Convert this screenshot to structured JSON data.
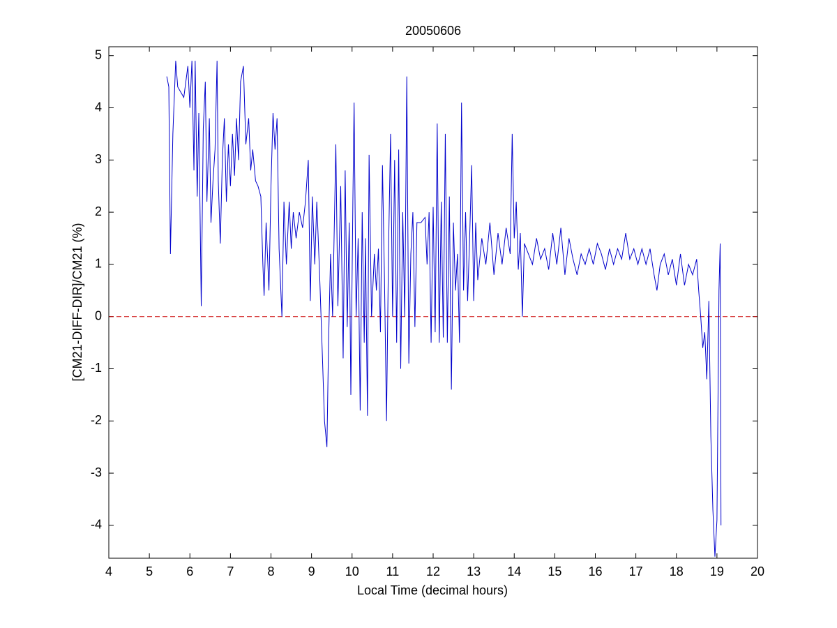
{
  "chart_data": {
    "type": "line",
    "title": "20050606",
    "x_label": "Local Time (decimal hours)",
    "y_label": "[CM21-DIFF-DIR]/CM21 (%)",
    "xlim": [
      4,
      20
    ],
    "xticks": [
      4,
      5,
      6,
      7,
      8,
      9,
      10,
      11,
      12,
      13,
      14,
      15,
      16,
      17,
      18,
      19,
      20
    ],
    "ylim": [
      -4.63,
      5.17
    ],
    "yticks": [
      -4,
      -3,
      -2,
      -1,
      0,
      1,
      2,
      3,
      4,
      5
    ],
    "reference_line": {
      "value": 0,
      "color": "#cc0000",
      "dashed": true
    },
    "box": true,
    "series": [
      {
        "color": "#0000cc",
        "x": [
          5.43,
          5.48,
          5.52,
          5.58,
          5.65,
          5.7,
          5.85,
          5.95,
          6.0,
          6.05,
          6.1,
          6.13,
          6.18,
          6.22,
          6.28,
          6.33,
          6.38,
          6.42,
          6.48,
          6.52,
          6.57,
          6.62,
          6.67,
          6.7,
          6.75,
          6.8,
          6.85,
          6.9,
          6.95,
          7.0,
          7.05,
          7.1,
          7.15,
          7.2,
          7.25,
          7.32,
          7.38,
          7.45,
          7.5,
          7.55,
          7.62,
          7.68,
          7.75,
          7.8,
          7.83,
          7.88,
          7.95,
          8.0,
          8.05,
          8.1,
          8.15,
          8.2,
          8.27,
          8.32,
          8.38,
          8.45,
          8.5,
          8.55,
          8.62,
          8.7,
          8.78,
          8.85,
          8.92,
          8.97,
          9.02,
          9.08,
          9.13,
          9.2,
          9.27,
          9.32,
          9.38,
          9.42,
          9.47,
          9.52,
          9.6,
          9.65,
          9.72,
          9.78,
          9.83,
          9.88,
          9.93,
          9.97,
          10.02,
          10.05,
          10.1,
          10.15,
          10.2,
          10.25,
          10.3,
          10.33,
          10.38,
          10.42,
          10.48,
          10.55,
          10.6,
          10.65,
          10.7,
          10.75,
          10.8,
          10.85,
          10.9,
          10.95,
          11.0,
          11.05,
          11.1,
          11.15,
          11.2,
          11.25,
          11.3,
          11.35,
          11.4,
          11.45,
          11.5,
          11.55,
          11.6,
          11.7,
          11.8,
          11.85,
          11.9,
          11.95,
          12.0,
          12.05,
          12.1,
          12.15,
          12.2,
          12.25,
          12.3,
          12.35,
          12.4,
          12.45,
          12.5,
          12.55,
          12.6,
          12.65,
          12.7,
          12.75,
          12.8,
          12.85,
          12.9,
          12.95,
          13.0,
          13.05,
          13.1,
          13.2,
          13.3,
          13.4,
          13.5,
          13.6,
          13.7,
          13.8,
          13.9,
          13.95,
          14.0,
          14.05,
          14.1,
          14.15,
          14.2,
          14.25,
          14.35,
          14.45,
          14.55,
          14.65,
          14.75,
          14.85,
          14.95,
          15.05,
          15.15,
          15.25,
          15.35,
          15.45,
          15.55,
          15.65,
          15.75,
          15.85,
          15.95,
          16.05,
          16.15,
          16.25,
          16.35,
          16.45,
          16.55,
          16.65,
          16.75,
          16.85,
          16.95,
          17.05,
          17.15,
          17.25,
          17.35,
          17.45,
          17.52,
          17.6,
          17.7,
          17.8,
          17.9,
          18.0,
          18.1,
          18.2,
          18.3,
          18.4,
          18.5,
          18.55,
          18.6,
          18.65,
          18.7,
          18.75,
          18.8,
          18.85,
          18.9,
          18.95,
          19.0,
          19.05,
          19.08,
          19.1
        ],
        "values": [
          4.6,
          4.4,
          1.2,
          3.5,
          4.9,
          4.4,
          4.2,
          4.8,
          4.0,
          4.9,
          2.8,
          4.9,
          2.3,
          3.9,
          0.2,
          3.6,
          4.5,
          2.2,
          3.8,
          1.8,
          2.6,
          3.2,
          4.9,
          2.6,
          1.4,
          3.0,
          3.8,
          2.2,
          3.3,
          2.5,
          3.5,
          2.7,
          3.8,
          3.0,
          4.5,
          4.8,
          3.3,
          3.8,
          2.8,
          3.2,
          2.6,
          2.5,
          2.3,
          1.0,
          0.4,
          1.8,
          0.5,
          2.5,
          3.9,
          3.2,
          3.8,
          1.3,
          0.0,
          2.2,
          1.0,
          2.2,
          1.3,
          2.0,
          1.5,
          2.0,
          1.7,
          2.2,
          3.0,
          0.3,
          2.3,
          1.0,
          2.2,
          0.8,
          -0.8,
          -2.0,
          -2.5,
          -0.5,
          1.2,
          0.0,
          3.3,
          0.2,
          2.5,
          -0.8,
          2.8,
          -0.2,
          1.8,
          -1.5,
          2.2,
          4.1,
          0.0,
          1.5,
          -1.8,
          2.0,
          -0.5,
          1.5,
          -1.9,
          3.1,
          0.0,
          1.2,
          0.5,
          1.3,
          -0.3,
          2.9,
          0.7,
          -2.0,
          1.3,
          3.5,
          0.0,
          3.0,
          -0.5,
          3.2,
          -1.0,
          2.0,
          0.0,
          4.6,
          -0.9,
          1.2,
          2.0,
          -0.2,
          1.8,
          1.8,
          1.9,
          1.0,
          2.0,
          -0.5,
          2.1,
          -0.3,
          3.7,
          -0.5,
          2.2,
          -0.4,
          3.5,
          -0.5,
          2.3,
          -1.4,
          1.8,
          0.5,
          1.2,
          -0.5,
          4.1,
          0.5,
          2.0,
          0.3,
          1.5,
          2.9,
          0.3,
          1.8,
          0.7,
          1.5,
          1.0,
          1.8,
          0.8,
          1.6,
          1.0,
          1.7,
          1.2,
          3.5,
          1.5,
          2.2,
          0.9,
          1.6,
          0.0,
          1.4,
          1.2,
          1.0,
          1.5,
          1.1,
          1.3,
          0.9,
          1.6,
          1.0,
          1.7,
          0.8,
          1.5,
          1.1,
          0.8,
          1.2,
          1.0,
          1.3,
          1.0,
          1.4,
          1.2,
          0.9,
          1.3,
          1.0,
          1.3,
          1.1,
          1.6,
          1.1,
          1.3,
          1.0,
          1.3,
          1.0,
          1.3,
          0.8,
          0.5,
          1.0,
          1.2,
          0.8,
          1.1,
          0.6,
          1.2,
          0.6,
          1.0,
          0.8,
          1.1,
          0.5,
          0.0,
          -0.6,
          -0.3,
          -1.2,
          0.3,
          -2.3,
          -3.7,
          -4.6,
          -3.9,
          0.5,
          1.4,
          -4.0
        ]
      }
    ]
  }
}
